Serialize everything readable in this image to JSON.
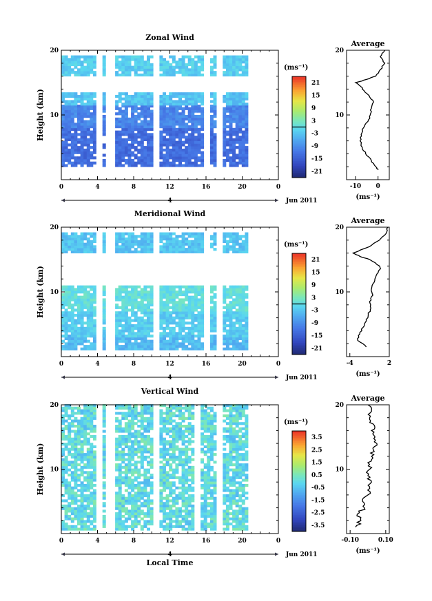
{
  "chart_data": [
    {
      "type": "heatmap",
      "title": "Zonal Wind",
      "ylabel": "Height (km)",
      "xticks": [
        "0",
        "4",
        "8",
        "12",
        "16",
        "20",
        "0"
      ],
      "yticks": [
        "20",
        "10"
      ],
      "xlim": [
        0,
        24
      ],
      "ylim": [
        0,
        20
      ],
      "date_label": "4",
      "month_label": "Jun 2011",
      "colorbar": {
        "unit": "(ms⁻¹)",
        "ticks": [
          "21",
          "15",
          "9",
          "3",
          "-3",
          "-9",
          "-15",
          "-21"
        ],
        "min": -24,
        "max": 24,
        "zero_contour": true
      },
      "missing_time_bands": [
        [
          4.1,
          4.5
        ],
        [
          5.2,
          5.6
        ],
        [
          10.4,
          10.8
        ],
        [
          15.8,
          16.3
        ],
        [
          17.3,
          17.7
        ]
      ],
      "data_time_range": [
        0,
        20.6
      ],
      "layers": [
        {
          "height_range": [
            2,
            8
          ],
          "value": -13
        },
        {
          "height_range": [
            8,
            11.5
          ],
          "value": -10
        },
        {
          "height_range": [
            11.5,
            13.5
          ],
          "value": -3
        },
        {
          "height_range": [
            16,
            19
          ],
          "value": -2
        }
      ],
      "profile": {
        "title": "Average",
        "xlabel": "(ms⁻¹)",
        "xticks": [
          "-10",
          "0"
        ],
        "yticks": [
          "20",
          "10"
        ],
        "xlim": [
          -14,
          5
        ],
        "ylim": [
          0,
          20
        ],
        "points": [
          {
            "h": 1.5,
            "v": 0
          },
          {
            "h": 2,
            "v": -1
          },
          {
            "h": 3,
            "v": -3
          },
          {
            "h": 4,
            "v": -5.5
          },
          {
            "h": 5,
            "v": -7
          },
          {
            "h": 6,
            "v": -8
          },
          {
            "h": 7,
            "v": -7.5
          },
          {
            "h": 8,
            "v": -6.5
          },
          {
            "h": 9,
            "v": -4.5
          },
          {
            "h": 10,
            "v": -3.5
          },
          {
            "h": 11,
            "v": -3
          },
          {
            "h": 12,
            "v": -2
          },
          {
            "h": 13,
            "v": -4
          },
          {
            "h": 14,
            "v": -7
          },
          {
            "h": 14.5,
            "v": -8
          },
          {
            "h": 15,
            "v": -10
          },
          {
            "h": 15.5,
            "v": -5
          },
          {
            "h": 16,
            "v": -1
          },
          {
            "h": 17,
            "v": 1
          },
          {
            "h": 18,
            "v": 3
          },
          {
            "h": 19,
            "v": 1
          },
          {
            "h": 20,
            "v": 3
          }
        ]
      }
    },
    {
      "type": "heatmap",
      "title": "Meridional Wind",
      "ylabel": "Height (km)",
      "xticks": [
        "0",
        "4",
        "8",
        "12",
        "16",
        "20",
        "0"
      ],
      "yticks": [
        "20",
        "10"
      ],
      "xlim": [
        0,
        24
      ],
      "ylim": [
        0,
        20
      ],
      "date_label": "4",
      "month_label": "Jun 2011",
      "colorbar": {
        "unit": "(ms⁻¹)",
        "ticks": [
          "21",
          "15",
          "9",
          "3",
          "-3",
          "-9",
          "-15",
          "-21"
        ],
        "min": -24,
        "max": 24,
        "zero_contour": true
      },
      "missing_time_bands": [
        [
          4.1,
          4.5
        ],
        [
          5.2,
          5.6
        ],
        [
          10.4,
          10.8
        ],
        [
          15.8,
          16.3
        ],
        [
          17.3,
          17.7
        ]
      ],
      "data_time_range": [
        0,
        20.6
      ],
      "layers": [
        {
          "height_range": [
            1,
            3
          ],
          "value": -4
        },
        {
          "height_range": [
            3,
            7
          ],
          "value": -2
        },
        {
          "height_range": [
            7,
            11
          ],
          "value": 0.5
        },
        {
          "height_range": [
            16,
            19
          ],
          "value": -3
        }
      ],
      "profile": {
        "title": "Average",
        "xlabel": "(ms⁻¹)",
        "xticks": [
          "-4",
          "2"
        ],
        "yticks": [
          "20",
          "10"
        ],
        "xlim": [
          -4.5,
          2
        ],
        "ylim": [
          0,
          20
        ],
        "points": [
          {
            "h": 1.5,
            "v": -1.5
          },
          {
            "h": 2.5,
            "v": -2.8
          },
          {
            "h": 3.5,
            "v": -2.5
          },
          {
            "h": 4.5,
            "v": -2
          },
          {
            "h": 5.5,
            "v": -1.5
          },
          {
            "h": 6.5,
            "v": -1.2
          },
          {
            "h": 7.5,
            "v": -0.8
          },
          {
            "h": 8.5,
            "v": -1
          },
          {
            "h": 9.5,
            "v": -0.5
          },
          {
            "h": 10.5,
            "v": -0.7
          },
          {
            "h": 11.5,
            "v": -0.3
          },
          {
            "h": 12.5,
            "v": 0
          },
          {
            "h": 13.5,
            "v": 0.6
          },
          {
            "h": 14,
            "v": 0.5
          },
          {
            "h": 15,
            "v": -1
          },
          {
            "h": 15.5,
            "v": -2.5
          },
          {
            "h": 16,
            "v": -3.5
          },
          {
            "h": 17,
            "v": -1
          },
          {
            "h": 18,
            "v": 0.5
          },
          {
            "h": 19,
            "v": 1.5
          },
          {
            "h": 20,
            "v": 1.8
          }
        ]
      }
    },
    {
      "type": "heatmap",
      "title": "Vertical Wind",
      "ylabel": "Height (km)",
      "xlabel": "Local Time",
      "xticks": [
        "0",
        "4",
        "8",
        "12",
        "16",
        "20",
        "0"
      ],
      "yticks": [
        "20",
        "10"
      ],
      "xlim": [
        0,
        24
      ],
      "ylim": [
        0,
        20
      ],
      "date_label": "4",
      "month_label": "Jun 2011",
      "colorbar": {
        "unit": "(ms⁻¹)",
        "ticks": [
          "3.5",
          "2.5",
          "1.5",
          "0.5",
          "-0.5",
          "-1.5",
          "-2.5",
          "-3.5"
        ],
        "min": -4,
        "max": 4,
        "zero_contour": false
      },
      "missing_time_bands": [
        [
          4.1,
          4.5
        ],
        [
          5.2,
          5.6
        ],
        [
          10.4,
          10.8
        ],
        [
          14.8,
          15.3
        ],
        [
          17.3,
          17.7
        ]
      ],
      "data_time_range": [
        0,
        20.6
      ],
      "layers": [
        {
          "height_range": [
            0.5,
            20
          ],
          "value": 0
        }
      ],
      "profile": {
        "title": "Average",
        "xlabel": "(ms⁻¹)",
        "xticks": [
          "-0.10",
          "0.10"
        ],
        "yticks": [
          "20",
          "10"
        ],
        "xlim": [
          -0.12,
          0.12
        ],
        "ylim": [
          0,
          20
        ],
        "points": [
          {
            "h": 1,
            "v": -0.07
          },
          {
            "h": 2,
            "v": -0.04
          },
          {
            "h": 3,
            "v": -0.06
          },
          {
            "h": 4,
            "v": -0.02
          },
          {
            "h": 5,
            "v": -0.03
          },
          {
            "h": 6,
            "v": 0.0
          },
          {
            "h": 7,
            "v": 0.01
          },
          {
            "h": 8,
            "v": 0.02
          },
          {
            "h": 9,
            "v": 0.0
          },
          {
            "h": 10,
            "v": 0.01
          },
          {
            "h": 11,
            "v": 0.0
          },
          {
            "h": 12,
            "v": 0.02
          },
          {
            "h": 13,
            "v": 0.03
          },
          {
            "h": 14,
            "v": 0.05
          },
          {
            "h": 15,
            "v": 0.04
          },
          {
            "h": 16,
            "v": 0.02
          },
          {
            "h": 17,
            "v": 0.03
          },
          {
            "h": 18,
            "v": 0.01
          },
          {
            "h": 19,
            "v": 0.02
          },
          {
            "h": 20,
            "v": 0.0
          }
        ]
      }
    }
  ]
}
